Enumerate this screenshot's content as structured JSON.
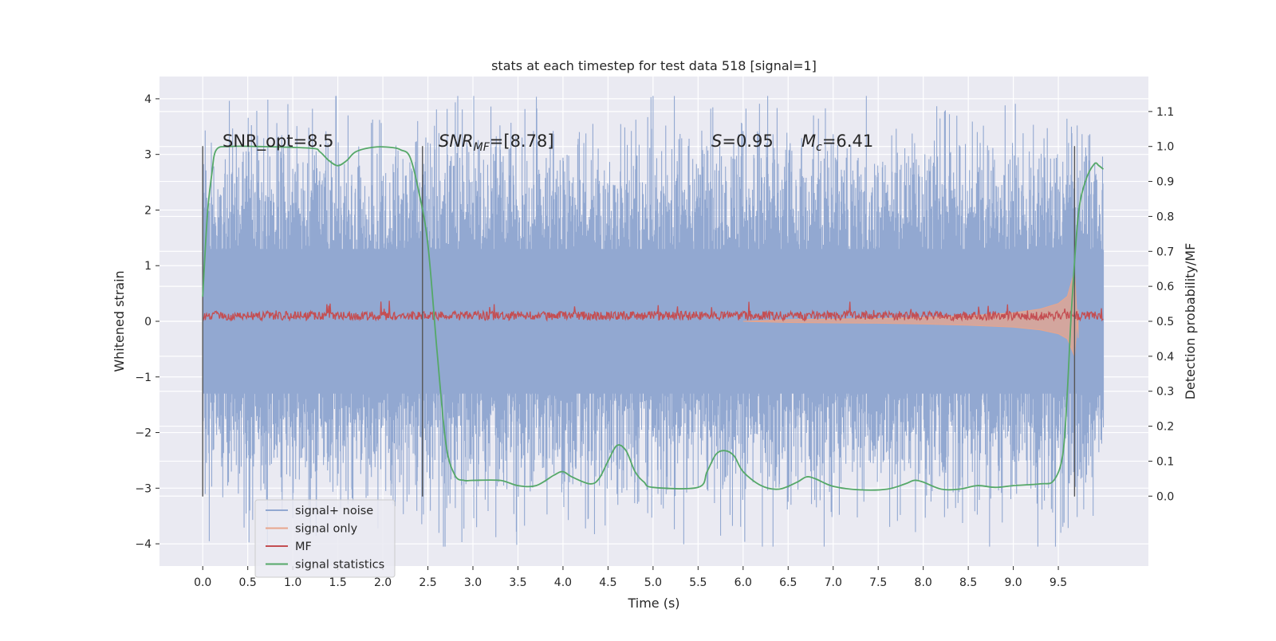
{
  "chart_data": {
    "type": "line",
    "title": "stats at each timestep for test data 518 [signal=1]",
    "xlabel": "Time (s)",
    "ylabel": "Whitened strain",
    "y2label": "Detection probability/MF",
    "xlim": [
      -0.48,
      10.5
    ],
    "ylim": [
      -4.4,
      4.4
    ],
    "y2lim": [
      -0.2,
      1.2
    ],
    "xticks": [
      0.0,
      0.5,
      1.0,
      1.5,
      2.0,
      2.5,
      3.0,
      3.5,
      4.0,
      4.5,
      5.0,
      5.5,
      6.0,
      6.5,
      7.0,
      7.5,
      8.0,
      8.5,
      9.0,
      9.5
    ],
    "xtick_labels": [
      "0.0",
      "0.5",
      "1.0",
      "1.5",
      "2.0",
      "2.5",
      "3.0",
      "3.5",
      "4.0",
      "4.5",
      "5.0",
      "5.5",
      "6.0",
      "6.5",
      "7.0",
      "7.5",
      "8.0",
      "8.5",
      "9.0",
      "9.5"
    ],
    "yticks": [
      4,
      3,
      2,
      1,
      0,
      -1,
      -2,
      -3,
      -4
    ],
    "ytick_labels": [
      "4",
      "3",
      "2",
      "1",
      "0",
      "−1",
      "−2",
      "−3",
      "−4"
    ],
    "y2ticks": [
      1.1,
      1.0,
      0.9,
      0.8,
      0.7,
      0.6,
      0.5,
      0.4,
      0.3,
      0.2,
      0.1,
      0.0
    ],
    "y2tick_labels": [
      "1.1",
      "1.0",
      "0.9",
      "0.8",
      "0.7",
      "0.6",
      "0.5",
      "0.4",
      "0.3",
      "0.2",
      "0.1",
      "0.0"
    ],
    "grid": true,
    "legend_position": "lower-left",
    "annotations": {
      "snr_opt": "SNR_opt=8.5",
      "snr_mf_sym": "SNR",
      "snr_mf_sub": "MF",
      "snr_mf_value": "=[8.78]",
      "s_sym": "S",
      "s_value": "=0.95",
      "mc_sym": "M",
      "mc_sub": "c",
      "mc_value": "=6.41"
    },
    "segment_boundaries": [
      0.0,
      2.44,
      9.68
    ],
    "series": [
      {
        "name": "signal+ noise",
        "color": "#92a8d1",
        "x_range": [
          0.0,
          10.0
        ],
        "envelope": {
          "upper_typical": 2.2,
          "lower_typical": -2.1,
          "max": 4.05,
          "min": -4.05
        }
      },
      {
        "name": "signal only",
        "color": "#e8a58c",
        "points": [
          [
            6.0,
            0.0
          ],
          [
            6.5,
            0.03
          ],
          [
            7.0,
            0.04
          ],
          [
            7.5,
            0.05
          ],
          [
            8.0,
            0.07
          ],
          [
            8.5,
            0.1
          ],
          [
            9.0,
            0.15
          ],
          [
            9.3,
            0.22
          ],
          [
            9.5,
            0.32
          ],
          [
            9.6,
            0.45
          ],
          [
            9.68,
            0.9
          ],
          [
            9.72,
            -0.3
          ]
        ]
      },
      {
        "name": "MF",
        "color": "#c44e52",
        "x_range": [
          0.0,
          10.0
        ],
        "baseline": 0.1,
        "amplitude": 0.16
      },
      {
        "name": "signal statistics",
        "color": "#55a868",
        "points": [
          [
            0.0,
            0.57
          ],
          [
            0.05,
            0.8
          ],
          [
            0.1,
            0.92
          ],
          [
            0.15,
            0.99
          ],
          [
            0.3,
            1.0
          ],
          [
            0.6,
            1.0
          ],
          [
            1.2,
            0.995
          ],
          [
            1.3,
            0.985
          ],
          [
            1.4,
            0.96
          ],
          [
            1.5,
            0.945
          ],
          [
            1.6,
            0.96
          ],
          [
            1.7,
            0.985
          ],
          [
            1.9,
            0.998
          ],
          [
            2.1,
            0.997
          ],
          [
            2.2,
            0.99
          ],
          [
            2.3,
            0.97
          ],
          [
            2.4,
            0.87
          ],
          [
            2.5,
            0.72
          ],
          [
            2.6,
            0.42
          ],
          [
            2.7,
            0.15
          ],
          [
            2.8,
            0.06
          ],
          [
            2.9,
            0.045
          ],
          [
            3.0,
            0.045
          ],
          [
            3.3,
            0.045
          ],
          [
            3.5,
            0.03
          ],
          [
            3.7,
            0.03
          ],
          [
            3.9,
            0.06
          ],
          [
            4.0,
            0.07
          ],
          [
            4.1,
            0.055
          ],
          [
            4.3,
            0.035
          ],
          [
            4.4,
            0.05
          ],
          [
            4.5,
            0.1
          ],
          [
            4.6,
            0.145
          ],
          [
            4.7,
            0.13
          ],
          [
            4.8,
            0.07
          ],
          [
            4.9,
            0.04
          ],
          [
            5.0,
            0.025
          ],
          [
            5.5,
            0.025
          ],
          [
            5.6,
            0.07
          ],
          [
            5.7,
            0.12
          ],
          [
            5.8,
            0.13
          ],
          [
            5.9,
            0.115
          ],
          [
            6.0,
            0.07
          ],
          [
            6.2,
            0.03
          ],
          [
            6.4,
            0.02
          ],
          [
            6.6,
            0.04
          ],
          [
            6.7,
            0.055
          ],
          [
            6.8,
            0.05
          ],
          [
            7.0,
            0.028
          ],
          [
            7.3,
            0.018
          ],
          [
            7.6,
            0.02
          ],
          [
            7.8,
            0.035
          ],
          [
            7.9,
            0.045
          ],
          [
            8.0,
            0.04
          ],
          [
            8.2,
            0.02
          ],
          [
            8.4,
            0.02
          ],
          [
            8.6,
            0.03
          ],
          [
            8.8,
            0.025
          ],
          [
            9.0,
            0.03
          ],
          [
            9.3,
            0.035
          ],
          [
            9.45,
            0.045
          ],
          [
            9.55,
            0.12
          ],
          [
            9.6,
            0.3
          ],
          [
            9.65,
            0.55
          ],
          [
            9.72,
            0.8
          ],
          [
            9.8,
            0.9
          ],
          [
            9.9,
            0.95
          ],
          [
            9.95,
            0.945
          ],
          [
            10.0,
            0.935
          ]
        ]
      }
    ]
  }
}
